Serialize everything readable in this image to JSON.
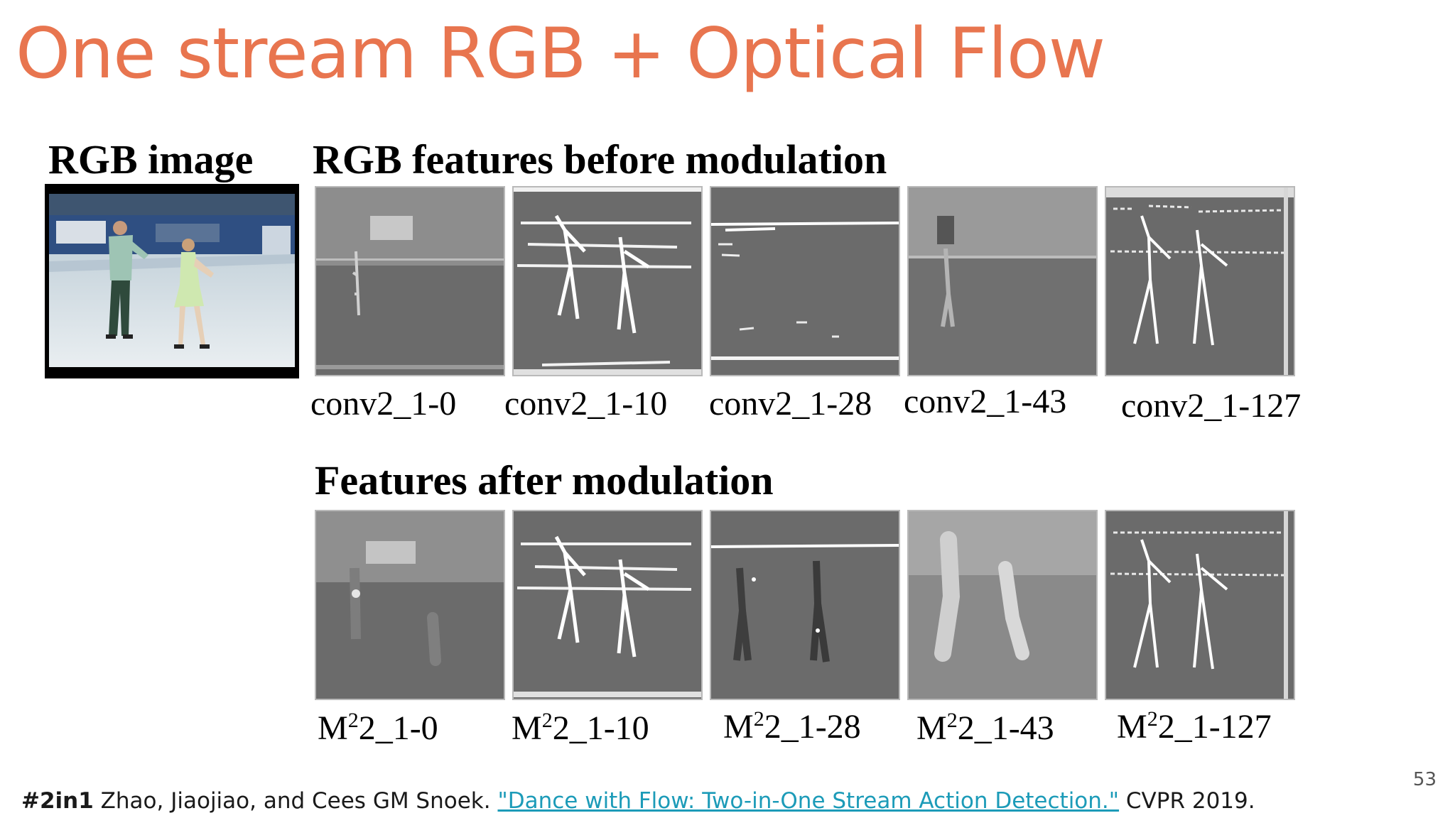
{
  "slide": {
    "title": "One stream RGB + Optical Flow",
    "page_number": "53"
  },
  "figure": {
    "rgb_image_heading": "RGB image",
    "before_heading": "RGB features before modulation",
    "after_heading": "Features after modulation",
    "before_labels": [
      "conv2_1-0",
      "conv2_1-10",
      "conv2_1-28",
      "conv2_1-43",
      "conv2_1-127"
    ],
    "after_labels": [
      {
        "m": "M",
        "sup": "2",
        "rest": "2_1-0"
      },
      {
        "m": "M",
        "sup": "2",
        "rest": "2_1-10"
      },
      {
        "m": "M",
        "sup": "2",
        "rest": "2_1-28"
      },
      {
        "m": "M",
        "sup": "2",
        "rest": "2_1-43"
      },
      {
        "m": "M",
        "sup": "2",
        "rest": "2_1-127"
      }
    ]
  },
  "citation": {
    "tag": "#2in1",
    "authors": "Zhao, Jiaojiao, and Cees GM Snoek.",
    "paper_title": "\"Dance with Flow: Two-in-One Stream Action Detection.\"",
    "venue": "CVPR 2019."
  }
}
